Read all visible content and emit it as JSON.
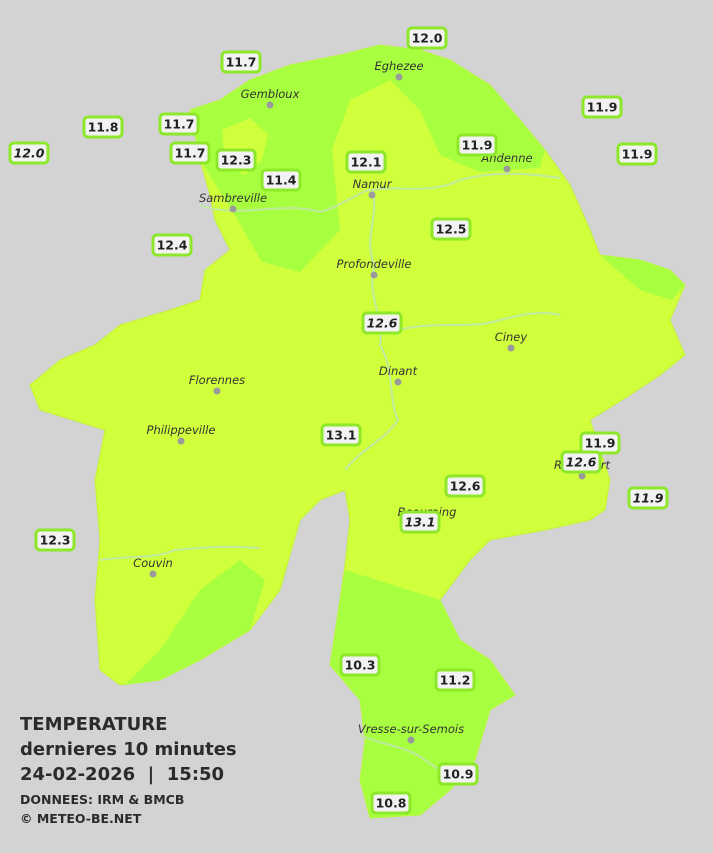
{
  "legend": {
    "title": "TEMPERATURE",
    "subtitle": "dernieres 10 minutes",
    "datetime": "24-02-2026  |  15:50",
    "source": "DONNEES: IRM & BMCB",
    "copyright": "© METEO-BE.NET"
  },
  "towns": [
    "Eghezee",
    "Gembloux",
    "Andenne",
    "Namur",
    "Sambreville",
    "Profondeville",
    "Ciney",
    "Dinant",
    "Florennes",
    "Philippeville",
    "Rochefort",
    "Beauraing",
    "Couvin",
    "Vresse-sur-Semois"
  ],
  "stations": [
    {
      "value": "12.0"
    },
    {
      "value": "11.7"
    },
    {
      "value": "11.9"
    },
    {
      "value": "11.8"
    },
    {
      "value": "11.7"
    },
    {
      "value": "12.0",
      "italic": true
    },
    {
      "value": "11.7"
    },
    {
      "value": "12.3"
    },
    {
      "value": "11.9"
    },
    {
      "value": "11.9"
    },
    {
      "value": "12.1"
    },
    {
      "value": "11.4"
    },
    {
      "value": "12.5"
    },
    {
      "value": "12.4"
    },
    {
      "value": "12.6",
      "italic": true
    },
    {
      "value": "13.1"
    },
    {
      "value": "11.9"
    },
    {
      "value": "12.6",
      "italic": true
    },
    {
      "value": "11.9",
      "italic": true
    },
    {
      "value": "12.6"
    },
    {
      "value": "13.1",
      "italic": true
    },
    {
      "value": "12.3"
    },
    {
      "value": "10.3"
    },
    {
      "value": "11.2"
    },
    {
      "value": "10.9"
    },
    {
      "value": "10.8"
    }
  ]
}
